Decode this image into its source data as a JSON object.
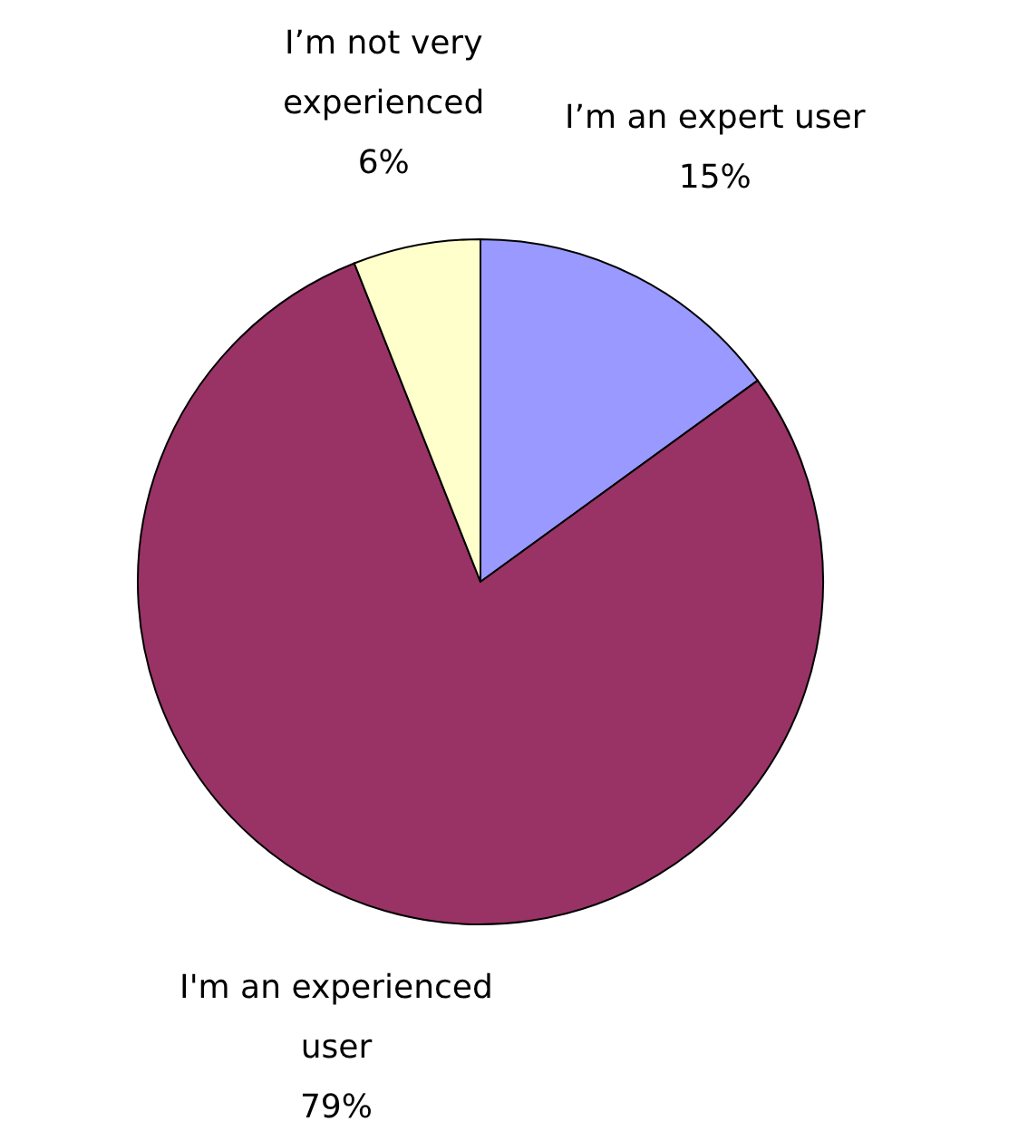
{
  "chart_data": {
    "type": "pie",
    "categories": [
      "I’m an expert user",
      "I'm an experienced user",
      "I’m not very experienced"
    ],
    "values": [
      15,
      79,
      6
    ],
    "colors": [
      "#9999ff",
      "#993366",
      "#ffffcc"
    ],
    "value_labels": [
      "15%",
      "79%",
      "6%"
    ]
  }
}
